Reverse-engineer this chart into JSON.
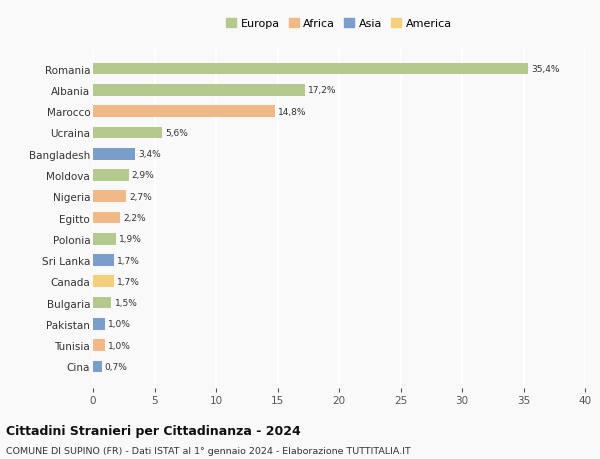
{
  "categories": [
    "Romania",
    "Albania",
    "Marocco",
    "Ucraina",
    "Bangladesh",
    "Moldova",
    "Nigeria",
    "Egitto",
    "Polonia",
    "Sri Lanka",
    "Canada",
    "Bulgaria",
    "Pakistan",
    "Tunisia",
    "Cina"
  ],
  "values": [
    35.4,
    17.2,
    14.8,
    5.6,
    3.4,
    2.9,
    2.7,
    2.2,
    1.9,
    1.7,
    1.7,
    1.5,
    1.0,
    1.0,
    0.7
  ],
  "labels": [
    "35,4%",
    "17,2%",
    "14,8%",
    "5,6%",
    "3,4%",
    "2,9%",
    "2,7%",
    "2,2%",
    "1,9%",
    "1,7%",
    "1,7%",
    "1,5%",
    "1,0%",
    "1,0%",
    "0,7%"
  ],
  "colors": [
    "#b5c98e",
    "#b5c98e",
    "#f0b987",
    "#b5c98e",
    "#7b9dc9",
    "#b5c98e",
    "#f0b987",
    "#f0b987",
    "#b5c98e",
    "#7b9dc9",
    "#f5d07a",
    "#b5c98e",
    "#7b9dc9",
    "#f0b987",
    "#7b9dc9"
  ],
  "legend": [
    {
      "label": "Europa",
      "color": "#b5c98e"
    },
    {
      "label": "Africa",
      "color": "#f0b987"
    },
    {
      "label": "Asia",
      "color": "#7b9dc9"
    },
    {
      "label": "America",
      "color": "#f5d07a"
    }
  ],
  "xlim": [
    0,
    40
  ],
  "xticks": [
    0,
    5,
    10,
    15,
    20,
    25,
    30,
    35,
    40
  ],
  "title": "Cittadini Stranieri per Cittadinanza - 2024",
  "subtitle": "COMUNE DI SUPINO (FR) - Dati ISTAT al 1° gennaio 2024 - Elaborazione TUTTITALIA.IT",
  "background_color": "#f9f9f9",
  "grid_color": "#ffffff",
  "bar_height": 0.55
}
